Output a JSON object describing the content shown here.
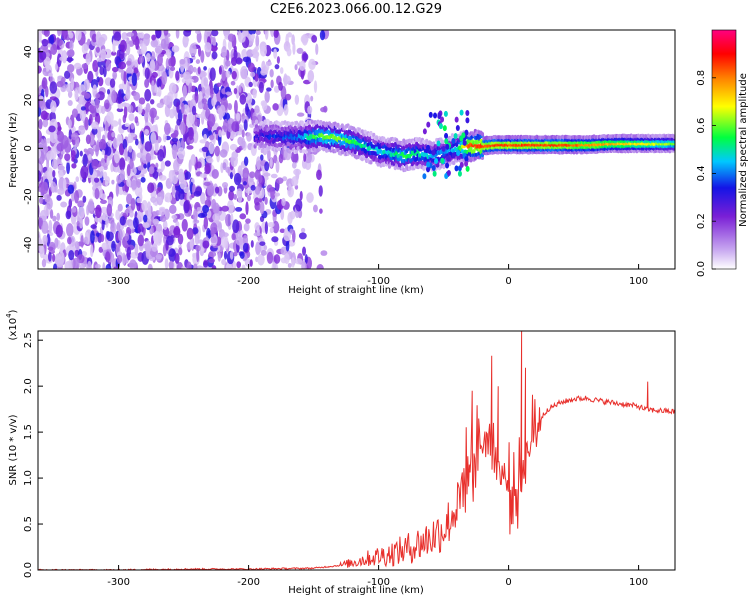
{
  "title": "C2E6.2023.066.00.12.G29",
  "colors": {
    "accent_line": "#e8302c",
    "frame": "#000000"
  },
  "chart_data": [
    {
      "type": "heatmap",
      "xlabel": "Height of straight line (km)",
      "ylabel": "Frequency (Hz)",
      "xlim": [
        -362,
        128
      ],
      "ylim": [
        -50,
        49
      ],
      "x_ticks": [
        -300,
        -200,
        -100,
        0,
        100
      ],
      "x_tick_labels": [
        "-300",
        "-200",
        "-100",
        "0",
        "100"
      ],
      "y_ticks": [
        -40,
        -20,
        0,
        20,
        40
      ],
      "y_tick_labels": [
        "-40",
        "-20",
        "0",
        "20",
        "40"
      ],
      "colorbar": {
        "label": "Normalized spectral amplitude",
        "range": [
          0.0,
          1.0
        ],
        "ticks": [
          0.0,
          0.2,
          0.4,
          0.6,
          0.8
        ],
        "tick_labels": [
          "0.0",
          "0.2",
          "0.4",
          "0.6",
          "0.8"
        ]
      },
      "ridge": {
        "x": [
          -195,
          -180,
          -160,
          -150,
          -140,
          -130,
          -120,
          -110,
          -100,
          -90,
          -80,
          -70,
          -60,
          -50,
          -40,
          -30,
          -20,
          -10,
          0,
          20,
          40,
          60,
          80,
          100,
          128
        ],
        "freq": [
          5,
          5,
          4.5,
          5,
          5,
          4,
          3,
          1,
          -1,
          -2,
          -3,
          -2,
          -3,
          -2,
          0,
          1,
          1,
          1.5,
          1.5,
          1.5,
          1.5,
          1.5,
          2,
          2,
          2
        ],
        "amplitude": [
          0.3,
          0.35,
          0.4,
          0.55,
          0.6,
          0.6,
          0.55,
          0.5,
          0.45,
          0.5,
          0.55,
          0.5,
          0.45,
          0.4,
          0.45,
          0.85,
          0.85,
          0.85,
          0.85,
          0.85,
          0.85,
          0.8,
          0.75,
          0.7,
          0.6
        ]
      },
      "grid": false
    },
    {
      "type": "line",
      "xlabel": "Height of straight line (km)",
      "ylabel": "SNR (10 * v/v)",
      "y_scale_label": "(x10",
      "y_scale_exponent": "4",
      "xlim": [
        -362,
        128
      ],
      "ylim": [
        0.0,
        2.6
      ],
      "x_ticks": [
        -300,
        -200,
        -100,
        0,
        100
      ],
      "x_tick_labels": [
        "-300",
        "-200",
        "-100",
        "0",
        "100"
      ],
      "y_ticks": [
        0.0,
        0.5,
        1.0,
        1.5,
        2.0,
        2.5
      ],
      "y_tick_labels": [
        "0.0",
        "0.5",
        "1.0",
        "1.5",
        "2.0",
        "2.5"
      ],
      "series": [
        {
          "x": [
            -362,
            -300,
            -250,
            -200,
            -150,
            -130,
            -120,
            -110,
            -100,
            -90,
            -80,
            -70,
            -60,
            -50,
            -45,
            -40,
            -35,
            -30,
            -25,
            -20,
            -15,
            -10,
            -5,
            0,
            5,
            10,
            15,
            20,
            25,
            30,
            40,
            50,
            60,
            70,
            80,
            90,
            100,
            105,
            110,
            120,
            128
          ],
          "y": [
            0.0,
            0.0,
            0.01,
            0.01,
            0.02,
            0.05,
            0.08,
            0.12,
            0.15,
            0.18,
            0.22,
            0.28,
            0.35,
            0.45,
            0.55,
            0.7,
            0.95,
            1.15,
            1.3,
            1.4,
            1.5,
            1.25,
            1.05,
            0.9,
            0.85,
            1.05,
            1.3,
            1.5,
            1.65,
            1.75,
            1.82,
            1.86,
            1.87,
            1.84,
            1.82,
            1.8,
            1.78,
            1.75,
            1.74,
            1.73,
            1.72
          ]
        }
      ],
      "spikes": [
        {
          "x": -28,
          "y": 1.95
        },
        {
          "x": -23,
          "y": 1.6
        },
        {
          "x": -13,
          "y": 2.33
        },
        {
          "x": -8,
          "y": 2.0
        },
        {
          "x": 10,
          "y": 2.6
        },
        {
          "x": 13,
          "y": 2.2
        },
        {
          "x": 107,
          "y": 2.05
        }
      ],
      "grid": false
    }
  ]
}
